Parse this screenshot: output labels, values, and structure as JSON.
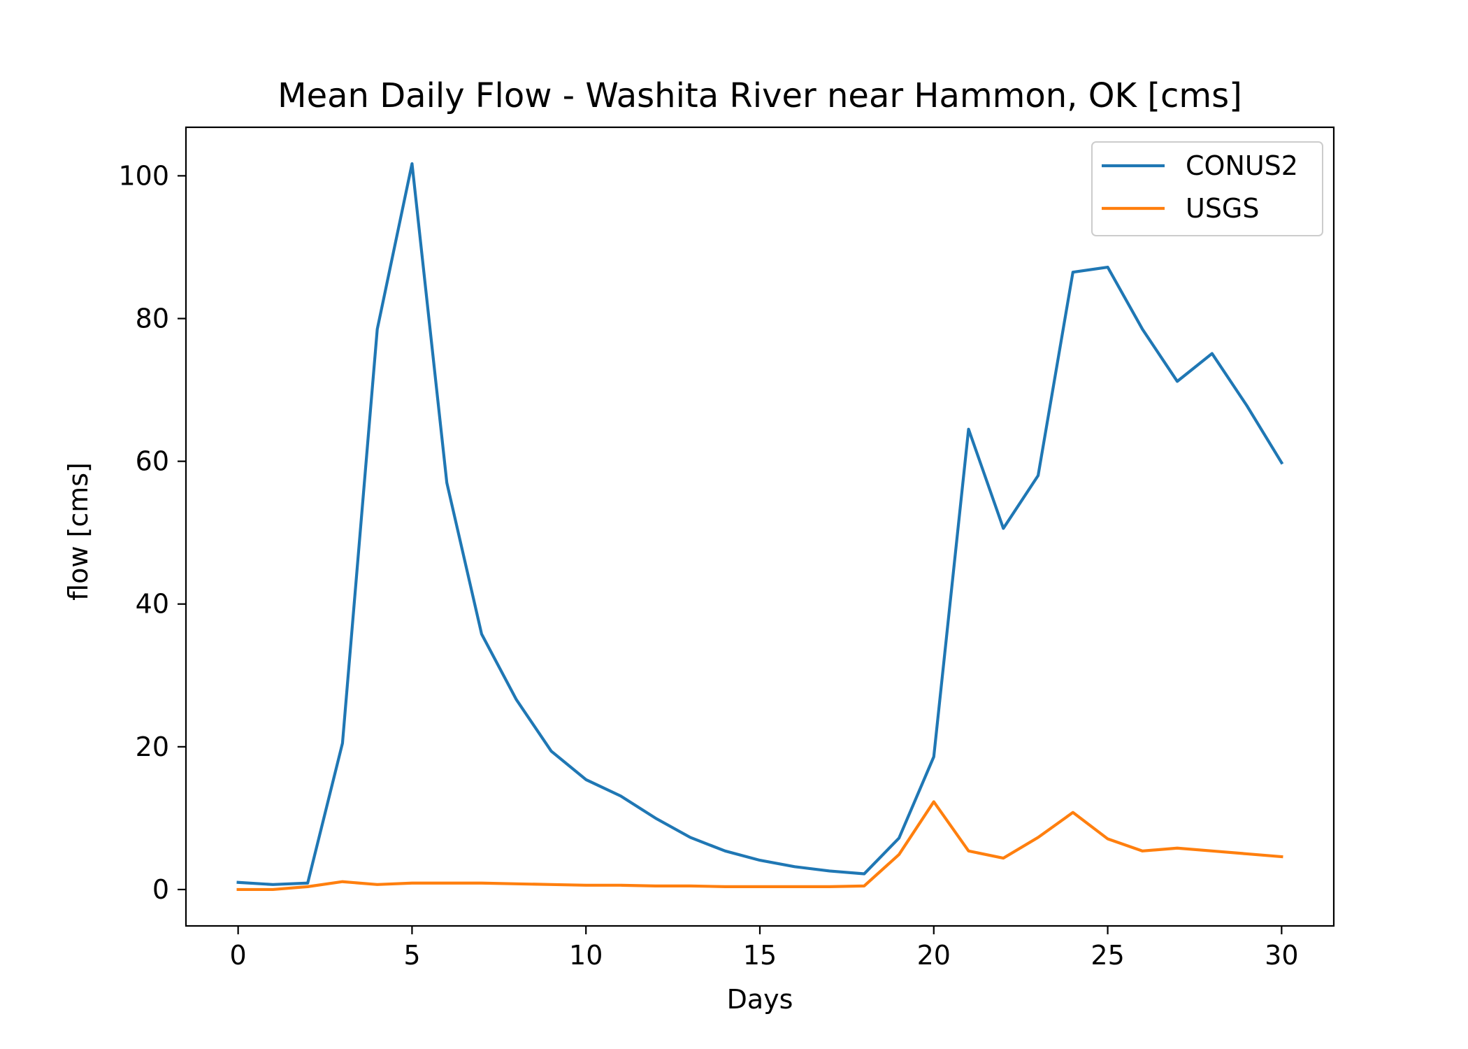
{
  "chart_data": {
    "type": "line",
    "title": "Mean Daily Flow - Washita River near Hammon, OK [cms]",
    "xlabel": "Days",
    "ylabel": "flow [cms]",
    "xlim": [
      -1.5,
      31.5
    ],
    "ylim": [
      -5.1,
      106.8
    ],
    "xticks": [
      0,
      5,
      10,
      15,
      20,
      25,
      30
    ],
    "yticks": [
      0,
      20,
      40,
      60,
      80,
      100
    ],
    "grid": false,
    "legend_position": "upper right",
    "x": [
      0,
      1,
      2,
      3,
      4,
      5,
      6,
      7,
      8,
      9,
      10,
      11,
      12,
      13,
      14,
      15,
      16,
      17,
      18,
      19,
      20,
      21,
      22,
      23,
      24,
      25,
      26,
      27,
      28,
      29,
      30
    ],
    "series": [
      {
        "name": "CONUS2",
        "color": "#1f77b4",
        "values": [
          1.0,
          0.7,
          0.9,
          20.5,
          78.5,
          101.7,
          57.0,
          35.8,
          26.6,
          19.4,
          15.4,
          13.1,
          10.0,
          7.3,
          5.4,
          4.1,
          3.2,
          2.6,
          2.2,
          7.2,
          18.6,
          64.5,
          50.6,
          58.0,
          86.5,
          87.2,
          78.5,
          71.2,
          75.1,
          67.8,
          59.8
        ]
      },
      {
        "name": "USGS",
        "color": "#ff7f0e",
        "values": [
          0.0,
          0.0,
          0.4,
          1.1,
          0.7,
          0.9,
          0.9,
          0.9,
          0.8,
          0.7,
          0.6,
          0.6,
          0.5,
          0.5,
          0.4,
          0.4,
          0.4,
          0.4,
          0.5,
          4.9,
          12.3,
          5.4,
          4.4,
          7.3,
          10.8,
          7.1,
          5.4,
          5.8,
          5.4,
          5.0,
          4.6
        ]
      }
    ]
  }
}
